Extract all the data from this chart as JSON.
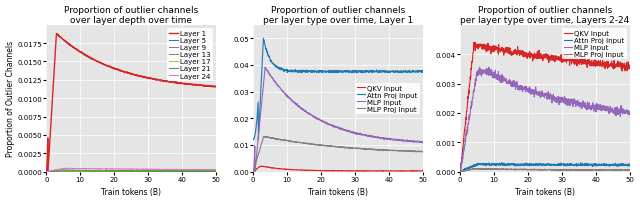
{
  "fig_width": 6.4,
  "fig_height": 2.03,
  "dpi": 100,
  "background_color": "#e5e5e5",
  "titles": [
    "Proportion of outlier channels\nover layer depth over time",
    "Proportion of outlier channels\nper layer type over time, Layer 1",
    "Proportion of outlier channels\nper layer type over time, Layers 2-24"
  ],
  "xlabel": "Train tokens (B)",
  "ylabel": "Proportion of Outlier Channels",
  "title_fontsize": 6.5,
  "axis_fontsize": 5.5,
  "tick_fontsize": 5,
  "legend_fontsize": 5,
  "plot1": {
    "ylim": [
      0,
      0.02
    ],
    "yticks": [
      0.0,
      0.0025,
      0.005,
      0.0075,
      0.01,
      0.0125,
      0.015,
      0.0175
    ],
    "layers": [
      "Layer 1",
      "Layer 5",
      "Layer 9",
      "Layer 13",
      "Layer 17",
      "Layer 21",
      "Layer 24"
    ],
    "colors": [
      "#d62728",
      "#1f77b4",
      "#9467bd",
      "#7f7f7f",
      "#bcbd22",
      "#2ca02c",
      "#e377c2"
    ]
  },
  "plot2": {
    "ylim": [
      0,
      0.055
    ],
    "yticks": [
      0.0,
      0.01,
      0.02,
      0.03,
      0.04,
      0.05
    ],
    "series": [
      "QKV Input",
      "Attn Proj Input",
      "MLP Input",
      "MLP Proj Input"
    ],
    "colors": [
      "#d62728",
      "#1f77b4",
      "#9467bd",
      "#7f7f7f"
    ]
  },
  "plot3": {
    "ylim": [
      0,
      0.005
    ],
    "yticks": [
      0.0,
      0.001,
      0.002,
      0.003,
      0.004
    ],
    "series": [
      "QKV Input",
      "Attn Proj Input",
      "MLP Input",
      "MLP Proj Input"
    ],
    "colors": [
      "#d62728",
      "#1f77b4",
      "#9467bd",
      "#7f7f7f"
    ]
  },
  "xlim": [
    0,
    50
  ],
  "xticks": [
    0,
    10,
    20,
    30,
    40,
    50
  ]
}
